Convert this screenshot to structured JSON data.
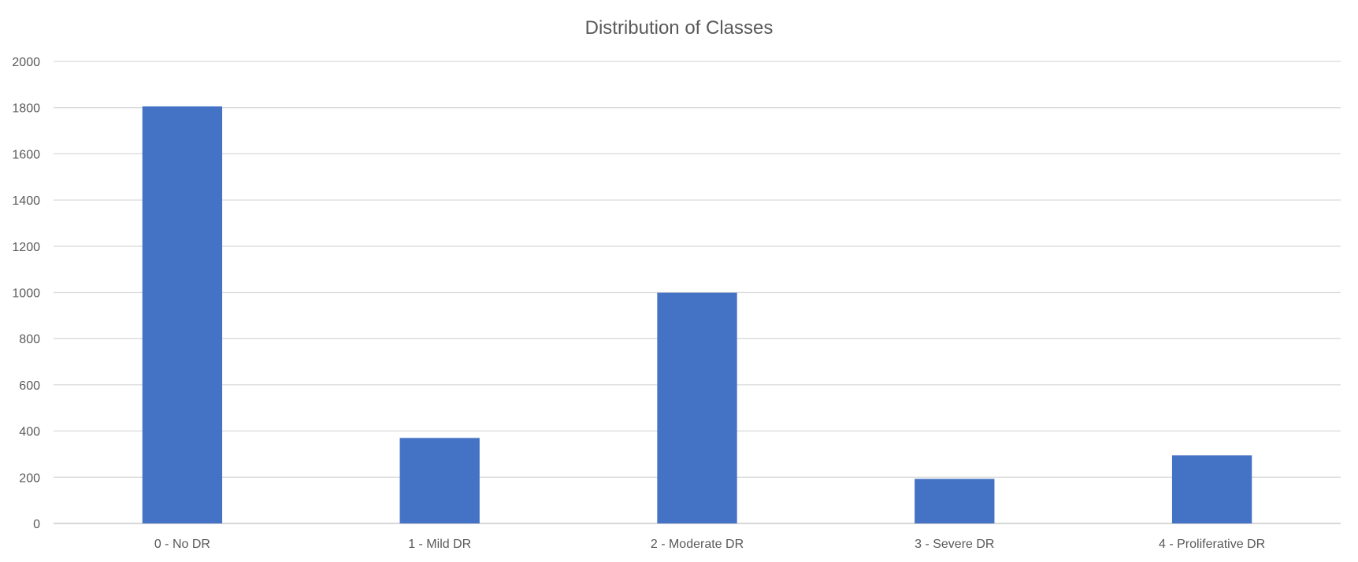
{
  "chart_data": {
    "type": "bar",
    "title": "Distribution of Classes",
    "categories": [
      "0 - No DR",
      "1 - Mild DR",
      "2 - Moderate DR",
      "3 - Severe DR",
      "4 - Proliferative DR"
    ],
    "values": [
      1805,
      370,
      999,
      193,
      295
    ],
    "ylim": [
      0,
      2000
    ],
    "yticks": [
      0,
      200,
      400,
      600,
      800,
      1000,
      1200,
      1400,
      1600,
      1800,
      2000
    ],
    "grid": true,
    "bar_color": "#4472C4"
  }
}
